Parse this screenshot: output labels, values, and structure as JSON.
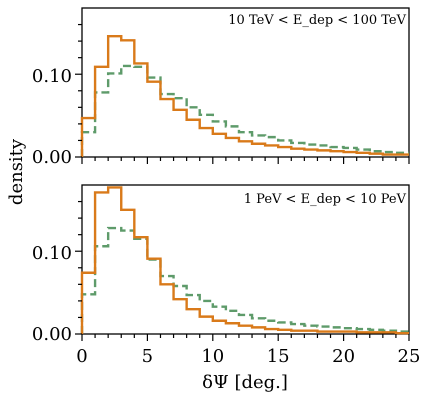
{
  "chart_data": [
    {
      "type": "line",
      "step": true,
      "annotation": "10 TeV < E_dep < 100 TeV",
      "xlim": [
        0,
        25
      ],
      "ylim": [
        0,
        0.18
      ],
      "yticks": [
        0.0,
        0.1
      ],
      "ytick_labels": [
        "0.00",
        "0.10"
      ],
      "bin_edges": [
        0,
        1,
        2,
        3,
        4,
        5,
        6,
        7,
        8,
        9,
        10,
        11,
        12,
        13,
        14,
        15,
        16,
        17,
        18,
        19,
        20,
        21,
        22,
        23,
        24,
        25
      ],
      "series": [
        {
          "color": "#d97a1a",
          "style": "solid",
          "values": [
            0.047,
            0.109,
            0.146,
            0.141,
            0.113,
            0.091,
            0.07,
            0.057,
            0.045,
            0.035,
            0.028,
            0.023,
            0.019,
            0.016,
            0.014,
            0.012,
            0.01,
            0.009,
            0.008,
            0.007,
            0.006,
            0.005,
            0.004,
            0.003,
            0.003
          ]
        },
        {
          "color": "#5e9b6a",
          "style": "dashed",
          "values": [
            0.03,
            0.078,
            0.101,
            0.11,
            0.109,
            0.096,
            0.076,
            0.071,
            0.06,
            0.051,
            0.043,
            0.037,
            0.03,
            0.026,
            0.024,
            0.02,
            0.017,
            0.015,
            0.014,
            0.012,
            0.011,
            0.009,
            0.007,
            0.006,
            0.005
          ]
        }
      ]
    },
    {
      "type": "line",
      "step": true,
      "annotation": "1 PeV < E_dep < 10 PeV",
      "xlim": [
        0,
        25
      ],
      "ylim": [
        0,
        0.18
      ],
      "yticks": [
        0.0,
        0.1
      ],
      "ytick_labels": [
        "0.00",
        "0.10"
      ],
      "xticks": [
        0,
        5,
        10,
        15,
        20,
        25
      ],
      "xtick_labels": [
        "0",
        "5",
        "10",
        "15",
        "20",
        "25"
      ],
      "xlabel": "δΨ [deg.]",
      "bin_edges": [
        0,
        1,
        2,
        3,
        4,
        5,
        6,
        7,
        8,
        9,
        10,
        11,
        12,
        13,
        14,
        15,
        16,
        17,
        18,
        19,
        20,
        21,
        22,
        23,
        24,
        25
      ],
      "series": [
        {
          "color": "#d97a1a",
          "style": "solid",
          "values": [
            0.074,
            0.171,
            0.177,
            0.15,
            0.117,
            0.091,
            0.06,
            0.042,
            0.03,
            0.021,
            0.016,
            0.013,
            0.01,
            0.008,
            0.006,
            0.005,
            0.004,
            0.004,
            0.003,
            0.003,
            0.003,
            0.002,
            0.002,
            0.002,
            0.001
          ]
        },
        {
          "color": "#5e9b6a",
          "style": "dashed",
          "values": [
            0.048,
            0.106,
            0.128,
            0.125,
            0.115,
            0.09,
            0.07,
            0.058,
            0.047,
            0.04,
            0.033,
            0.028,
            0.023,
            0.019,
            0.016,
            0.014,
            0.012,
            0.01,
            0.009,
            0.008,
            0.007,
            0.006,
            0.005,
            0.004,
            0.003
          ]
        }
      ]
    }
  ],
  "shared_ylabel": "density"
}
